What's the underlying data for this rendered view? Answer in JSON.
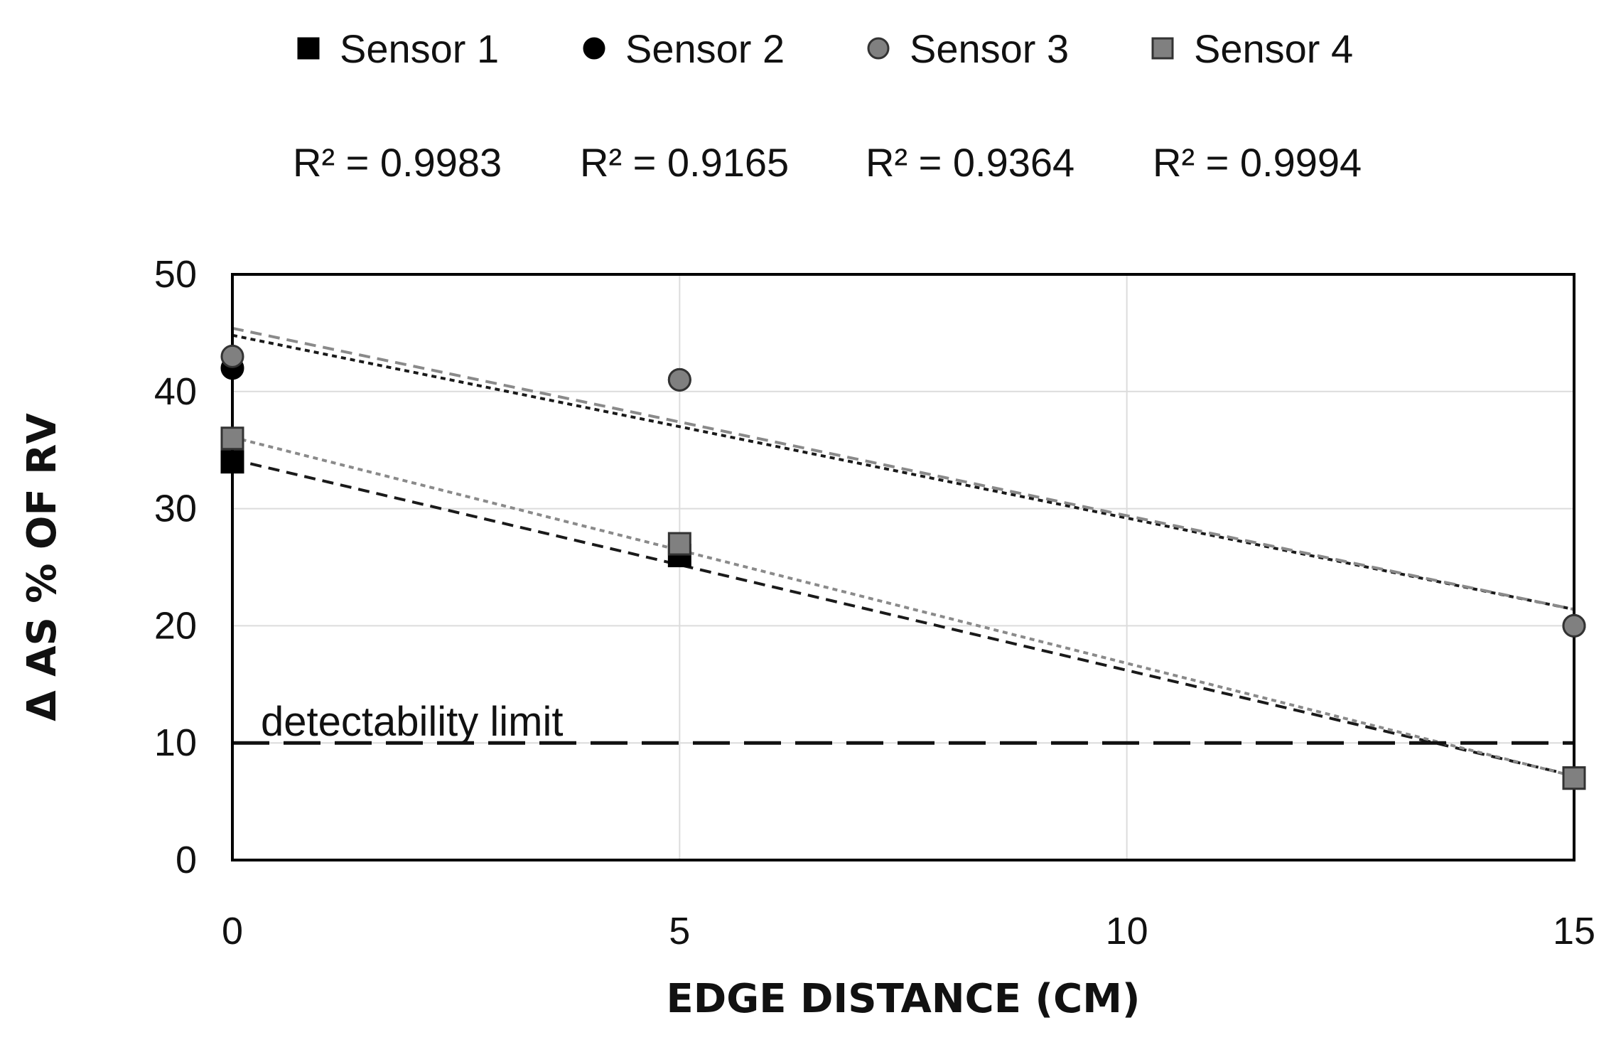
{
  "chart_data": {
    "type": "scatter",
    "title": "",
    "xlabel": "EDGE DISTANCE (CM)",
    "ylabel": "Δ AS % OF RV",
    "xlim": [
      0,
      15
    ],
    "ylim": [
      0,
      50
    ],
    "xticks": [
      0,
      5,
      10,
      15
    ],
    "yticks": [
      0,
      10,
      20,
      30,
      40,
      50
    ],
    "grid": true,
    "legend_position": "top",
    "series": [
      {
        "name": "Sensor 1",
        "marker": "square",
        "color": "#000000",
        "trendline_color": "#1a1a1a",
        "r2_label": "R² = 0.9983",
        "x": [
          0,
          5,
          15
        ],
        "y": [
          34,
          26,
          7
        ],
        "trendline": {
          "intercept": 34.2,
          "slope": -1.8
        }
      },
      {
        "name": "Sensor 2",
        "marker": "circle",
        "color": "#000000",
        "trendline_color": "#1a1a1a",
        "r2_label": "R² = 0.9165",
        "x": [
          0,
          5,
          15
        ],
        "y": [
          42,
          41,
          20
        ],
        "trendline": {
          "intercept": 44.8,
          "slope": -1.56
        }
      },
      {
        "name": "Sensor 3",
        "marker": "circle",
        "color": "#808080",
        "trendline_color": "#8a8a8a",
        "r2_label": "R² = 0.9364",
        "x": [
          0,
          5,
          15
        ],
        "y": [
          43,
          41,
          20
        ],
        "trendline": {
          "intercept": 45.4,
          "slope": -1.6
        }
      },
      {
        "name": "Sensor 4",
        "marker": "square",
        "color": "#808080",
        "trendline_color": "#8a8a8a",
        "r2_label": "R² = 0.9994",
        "x": [
          0,
          5,
          15
        ],
        "y": [
          36,
          27,
          7
        ],
        "trendline": {
          "intercept": 36.1,
          "slope": -1.93
        }
      }
    ],
    "annotations": [
      {
        "text": "detectability limit",
        "y": 10,
        "style": "dashed-horizontal-line"
      }
    ]
  }
}
